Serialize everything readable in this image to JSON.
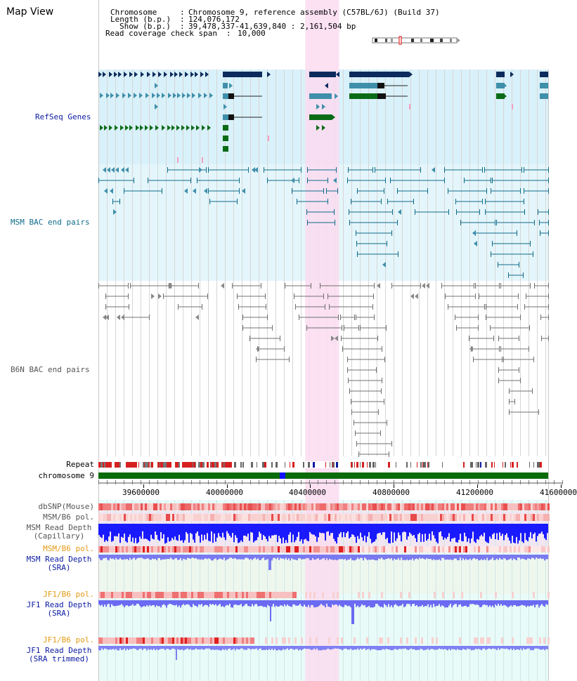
{
  "title": "Map View",
  "header": {
    "chromosome_key": "Chromosome",
    "chromosome_val": "Chromosome 9, reference assembly (C57BL/6J) (Build 37)",
    "length_key": "Length (b.p.)",
    "length_val": "124,076,172",
    "show_key": "Show (b.p.)",
    "show_val": "39,478,337-41,639,840 : 2,161,504 bp",
    "coverage_key": "Read coverage check span",
    "coverage_val": "10,000"
  },
  "tracks": {
    "refseq": "RefSeq Genes",
    "msm_bac": "MSM BAC end pairs",
    "b6n_bac": "B6N BAC end pairs",
    "repeat": "Repeat",
    "chromosome": "chromosome 9",
    "dbsnp": "dbSNP(Mouse)",
    "msm_b6_pol_1": "MSM/B6 pol.",
    "msm_read_depth_cap": "MSM Read Depth\n(Capillary)",
    "msm_b6_pol_2": "MSM/B6 pol.",
    "msm_read_depth_sra": "MSM Read Depth\n(SRA)",
    "jf1_b6_pol_1": "JF1/B6 pol.",
    "jf1_read_depth_sra": "JF1 Read Depth\n(SRA)",
    "jf1_b6_pol_2": "JF1/B6 pol.",
    "jf1_read_depth_trim": "JF1 Read Depth\n(SRA trimmed)"
  },
  "axis": {
    "ticks": [
      "39600000",
      "40000000",
      "40400000",
      "40800000",
      "41200000",
      "41600000"
    ],
    "range_bp": [
      39478337,
      41639840
    ]
  },
  "highlight_range_bp": [
    40472000,
    40635000
  ],
  "colors": {
    "refseq_bg": "#d9f1fa",
    "msm_bg": "#e4f6fb",
    "lower_bg": "#e8fbf8",
    "highlight": "#fadcf0",
    "navy": "#0c2b5c",
    "teal": "#3f8faa",
    "green": "#0a6b17",
    "msm_line": "#0f6b8a",
    "b6n_line": "#666666",
    "chrom_green": "#0a6b0a",
    "label_blue": "#0a1aa0",
    "label_teal": "#0f6b8a",
    "label_gray": "#555555",
    "label_orange": "#e39a14"
  }
}
